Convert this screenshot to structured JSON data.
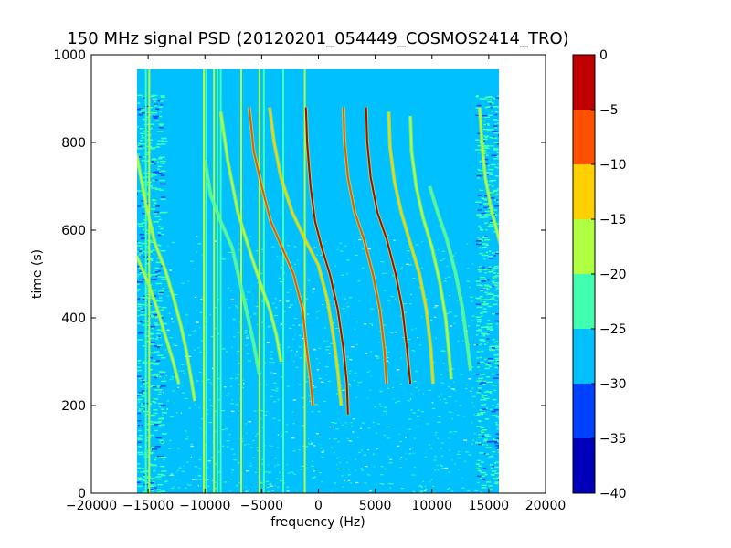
{
  "chart_data": {
    "type": "heatmap",
    "title": "150 MHz signal PSD (20120201_054449_COSMOS2414_TRO)",
    "xlabel": "frequency (Hz)",
    "ylabel": "time (s)",
    "xlim": [
      -20000,
      20000
    ],
    "ylim": [
      0,
      1000
    ],
    "x_ticks": [
      -20000,
      -15000,
      -10000,
      -5000,
      0,
      5000,
      10000,
      15000,
      20000
    ],
    "x_tick_labels": [
      "−20000",
      "−15000",
      "−10000",
      "−5000",
      "0",
      "5000",
      "10000",
      "15000",
      "20000"
    ],
    "y_ticks": [
      0,
      200,
      400,
      600,
      800,
      1000
    ],
    "y_tick_labels": [
      "0",
      "200",
      "400",
      "600",
      "800",
      "1000"
    ],
    "data_extent": {
      "freq_min": -16200,
      "freq_max": 16200,
      "time_min": 0,
      "time_max": 968
    },
    "grid": false,
    "colorbar": {
      "levels": [
        -40,
        -35,
        -30,
        -25,
        -20,
        -15,
        -10,
        -5,
        0
      ],
      "tick_labels": [
        "−40",
        "−35",
        "−30",
        "−25",
        "−20",
        "−15",
        "−10",
        "−5",
        "0"
      ],
      "colors": [
        "#0000bb",
        "#0040ff",
        "#00c0ff",
        "#40ffb0",
        "#b0ff40",
        "#ffd000",
        "#ff5000",
        "#c00000"
      ],
      "placement": "right"
    },
    "background_level_color": "#00c0ff",
    "edge_noise_color": "#40ffb0",
    "vertical_lines": [
      {
        "freq": -15200,
        "color": "#40ffb0"
      },
      {
        "freq": -14900,
        "color": "#b0ff40"
      },
      {
        "freq": -10100,
        "color": "#b0ff40"
      },
      {
        "freq": -9900,
        "color": "#40ffb0"
      },
      {
        "freq": -9200,
        "color": "#b0ff40"
      },
      {
        "freq": -8900,
        "color": "#40ffb0"
      },
      {
        "freq": -8600,
        "color": "#40ffb0"
      },
      {
        "freq": -6800,
        "color": "#b0ff40"
      },
      {
        "freq": -5200,
        "color": "#b0ff40"
      },
      {
        "freq": -4800,
        "color": "#40ffb0"
      },
      {
        "freq": -3100,
        "color": "#40ffb0"
      },
      {
        "freq": -1200,
        "color": "#b0ff40"
      }
    ],
    "traces": [
      {
        "points": [
          [
            -16000,
            540
          ],
          [
            -15000,
            480
          ],
          [
            -14200,
            420
          ],
          [
            -13500,
            360
          ],
          [
            -12800,
            300
          ],
          [
            -12300,
            250
          ]
        ],
        "color": "#b0ff40",
        "level": -15
      },
      {
        "points": [
          [
            -16000,
            770
          ],
          [
            -15200,
            660
          ],
          [
            -14400,
            570
          ],
          [
            -13500,
            510
          ],
          [
            -12700,
            440
          ],
          [
            -12100,
            380
          ],
          [
            -11600,
            320
          ],
          [
            -11200,
            260
          ],
          [
            -10900,
            210
          ]
        ],
        "color": "#b0ff40",
        "level": -15
      },
      {
        "points": [
          [
            -10000,
            760
          ],
          [
            -9500,
            680
          ],
          [
            -8600,
            620
          ],
          [
            -7600,
            560
          ],
          [
            -6900,
            480
          ],
          [
            -6200,
            400
          ],
          [
            -5700,
            340
          ],
          [
            -5200,
            270
          ]
        ],
        "color": "#40ffb0",
        "level": -20
      },
      {
        "points": [
          [
            -8600,
            870
          ],
          [
            -8000,
            760
          ],
          [
            -7100,
            640
          ],
          [
            -5900,
            540
          ],
          [
            -5000,
            470
          ],
          [
            -4300,
            420
          ],
          [
            -3700,
            360
          ],
          [
            -3300,
            300
          ]
        ],
        "color": "#b0ff40",
        "level": -15
      },
      {
        "points": [
          [
            -6100,
            880
          ],
          [
            -5700,
            780
          ],
          [
            -5000,
            700
          ],
          [
            -4200,
            620
          ],
          [
            -3200,
            560
          ],
          [
            -2200,
            500
          ],
          [
            -1400,
            420
          ],
          [
            -1000,
            320
          ],
          [
            -700,
            260
          ],
          [
            -500,
            200
          ]
        ],
        "color": "#ff5000",
        "level": -5
      },
      {
        "points": [
          [
            -4300,
            880
          ],
          [
            -3900,
            800
          ],
          [
            -3300,
            720
          ],
          [
            -2300,
            640
          ],
          [
            -1200,
            580
          ],
          [
            0,
            520
          ],
          [
            800,
            440
          ],
          [
            1300,
            360
          ],
          [
            1700,
            280
          ],
          [
            2000,
            200
          ]
        ],
        "color": "#ffd000",
        "level": -10
      },
      {
        "points": [
          [
            -1100,
            880
          ],
          [
            -1000,
            800
          ],
          [
            -700,
            700
          ],
          [
            -300,
            620
          ],
          [
            300,
            560
          ],
          [
            1000,
            500
          ],
          [
            1700,
            420
          ],
          [
            2200,
            330
          ],
          [
            2500,
            250
          ],
          [
            2600,
            180
          ]
        ],
        "color": "#c00000",
        "level": 0
      },
      {
        "points": [
          [
            2200,
            880
          ],
          [
            2300,
            800
          ],
          [
            2600,
            720
          ],
          [
            3200,
            640
          ],
          [
            4000,
            580
          ],
          [
            4800,
            500
          ],
          [
            5400,
            420
          ],
          [
            5800,
            330
          ],
          [
            6000,
            250
          ]
        ],
        "color": "#ff5000",
        "level": -5
      },
      {
        "points": [
          [
            4200,
            880
          ],
          [
            4300,
            800
          ],
          [
            4600,
            720
          ],
          [
            5200,
            640
          ],
          [
            6000,
            580
          ],
          [
            6800,
            500
          ],
          [
            7400,
            420
          ],
          [
            7800,
            330
          ],
          [
            8100,
            250
          ]
        ],
        "color": "#c00000",
        "level": 0
      },
      {
        "points": [
          [
            6200,
            870
          ],
          [
            6300,
            790
          ],
          [
            6700,
            710
          ],
          [
            7300,
            640
          ],
          [
            8100,
            570
          ],
          [
            8900,
            500
          ],
          [
            9500,
            420
          ],
          [
            9900,
            330
          ],
          [
            10100,
            250
          ]
        ],
        "color": "#ffd000",
        "level": -10
      },
      {
        "points": [
          [
            8100,
            860
          ],
          [
            8200,
            780
          ],
          [
            8600,
            700
          ],
          [
            9200,
            630
          ],
          [
            10000,
            560
          ],
          [
            10700,
            480
          ],
          [
            11200,
            400
          ],
          [
            11500,
            320
          ],
          [
            11700,
            260
          ]
        ],
        "color": "#b0ff40",
        "level": -15
      },
      {
        "points": [
          [
            14200,
            880
          ],
          [
            14400,
            800
          ],
          [
            14700,
            720
          ],
          [
            15200,
            650
          ],
          [
            15700,
            600
          ],
          [
            16000,
            570
          ]
        ],
        "color": "#b0ff40",
        "level": -15
      },
      {
        "points": [
          [
            9800,
            700
          ],
          [
            10500,
            640
          ],
          [
            11300,
            580
          ],
          [
            12100,
            500
          ],
          [
            12700,
            420
          ],
          [
            13100,
            340
          ],
          [
            13400,
            280
          ]
        ],
        "color": "#40ffb0",
        "level": -20
      }
    ]
  }
}
